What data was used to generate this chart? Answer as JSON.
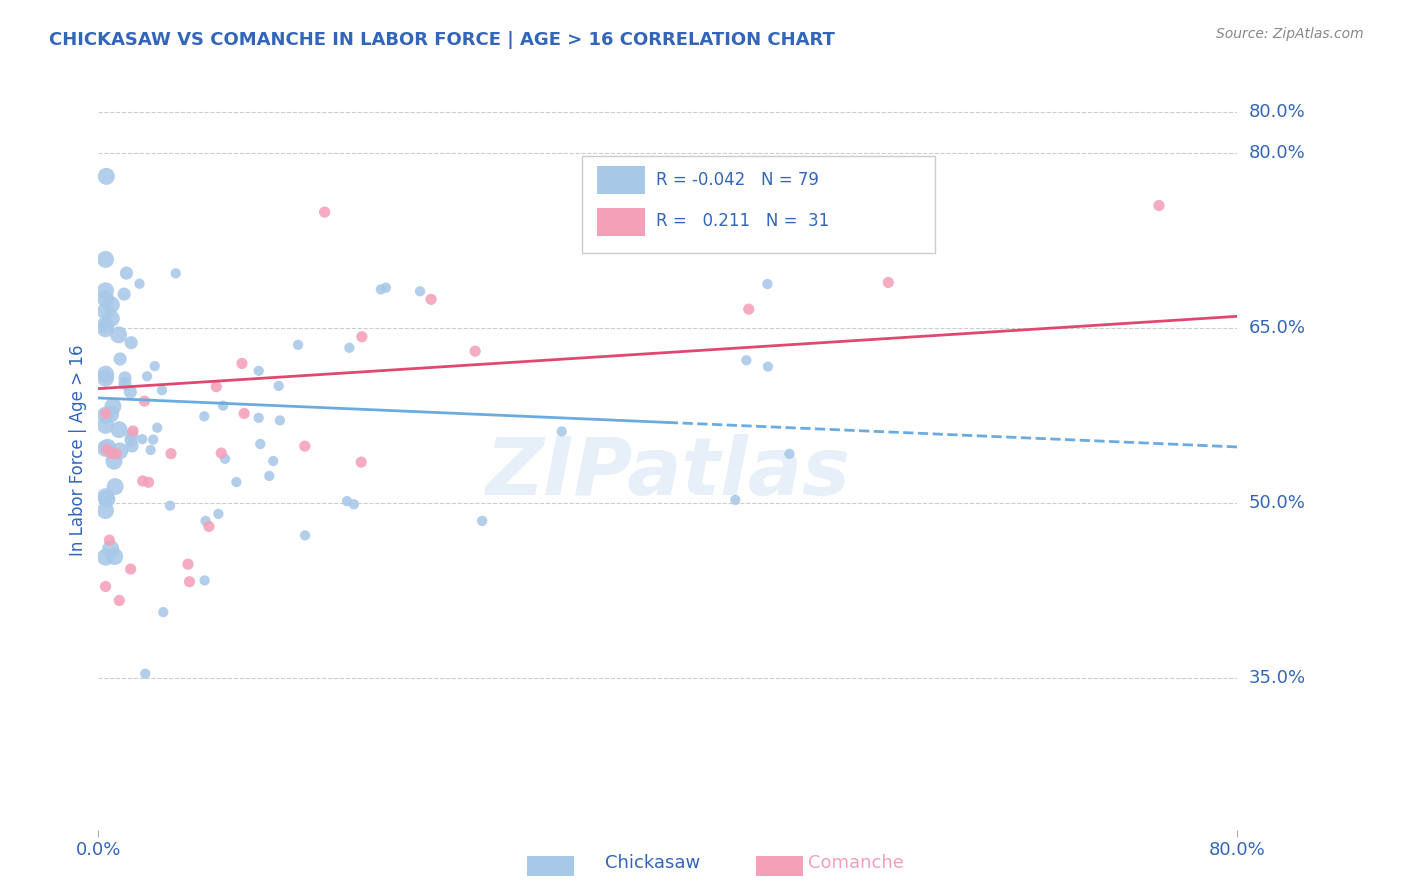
{
  "title": "CHICKASAW VS COMANCHE IN LABOR FORCE | AGE > 16 CORRELATION CHART",
  "source": "Source: ZipAtlas.com",
  "ylabel": "In Labor Force | Age > 16",
  "xlim": [
    0.0,
    0.8
  ],
  "ylim": [
    0.22,
    0.87
  ],
  "yticks": [
    0.35,
    0.5,
    0.65,
    0.8
  ],
  "ytick_labels": [
    "35.0%",
    "50.0%",
    "65.0%",
    "80.0%"
  ],
  "xtick_labels": [
    "0.0%",
    "80.0%"
  ],
  "legend_R1": "-0.042",
  "legend_N1": "79",
  "legend_R2": "0.211",
  "legend_N2": "31",
  "chickasaw_color": "#a8c8e8",
  "comanche_color": "#f4a0b8",
  "trend_chickasaw_color": "#6aabe0",
  "trend_comanche_color": "#e04870",
  "background_color": "#ffffff",
  "grid_color": "#cccccc",
  "title_color": "#3366bb",
  "axis_label_color": "#3366bb",
  "tick_label_color": "#3366bb",
  "trend_chickasaw_start_y": 0.59,
  "trend_chickasaw_end_y": 0.548,
  "trend_comanche_start_y": 0.598,
  "trend_comanche_end_y": 0.66
}
